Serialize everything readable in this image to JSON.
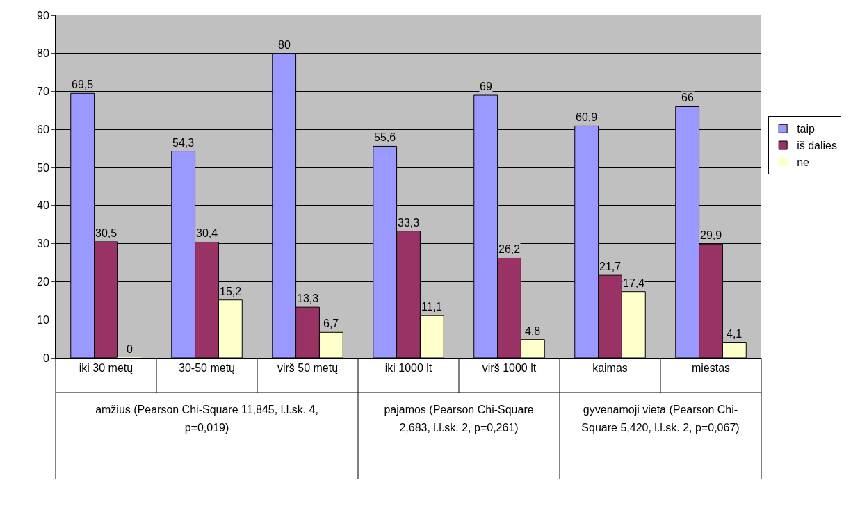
{
  "chart_data": {
    "type": "bar",
    "categories": [
      "iki 30 metų",
      "30-50 metų",
      "virš 50 metų",
      "iki 1000 lt",
      "virš 1000 lt",
      "kaimas",
      "miestas"
    ],
    "series": [
      {
        "name": "taip",
        "color": "#9999ff",
        "values": [
          69.5,
          54.3,
          80,
          55.6,
          69,
          60.9,
          66
        ],
        "value_labels": [
          "69,5",
          "54,3",
          "80",
          "55,6",
          "69",
          "60,9",
          "66"
        ]
      },
      {
        "name": "iš dalies",
        "color": "#993366",
        "values": [
          30.5,
          30.4,
          13.3,
          33.3,
          26.2,
          21.7,
          29.9
        ],
        "value_labels": [
          "30,5",
          "30,4",
          "13,3",
          "33,3",
          "26,2",
          "21,7",
          "29,9"
        ]
      },
      {
        "name": "ne",
        "color": "#ffffcc",
        "values": [
          0,
          15.2,
          6.7,
          11.1,
          4.8,
          17.4,
          4.1
        ],
        "value_labels": [
          "0",
          "15,2",
          "6,7",
          "11,1",
          "4,8",
          "17,4",
          "4,1"
        ]
      }
    ],
    "ylim": [
      0,
      90
    ],
    "yticks": [
      0,
      10,
      20,
      30,
      40,
      50,
      60,
      70,
      80,
      90
    ],
    "grid": "y",
    "legend": "right",
    "annotations": [
      "amžius (Pearson Chi-Square 11,845, l.l.sk. 4, p=0,019)",
      "pajamos (Pearson Chi-Square 2,683, l.l.sk. 2, p=0,261)",
      "gyvenamoji vieta (Pearson Chi-Square 5,420, l.l.sk. 2, p=0,067)"
    ]
  }
}
